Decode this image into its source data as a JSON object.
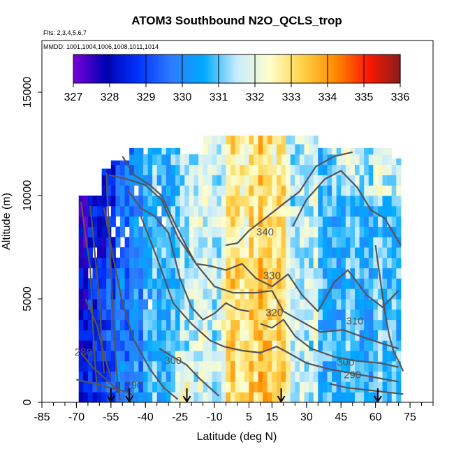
{
  "chart_data": {
    "type": "heatmap",
    "title": "ATOM3 Southbound N2O_QCLS_trop",
    "flights_label": "Flts: 2,3,4,5,6,7",
    "mmdd_label": "MMDD: 1001,1004,1006,1008,1011,1014",
    "xlabel": "Latitude (deg N)",
    "ylabel": "Altitude (m)",
    "xlim": [
      -85,
      85
    ],
    "ylim": [
      0,
      17500
    ],
    "x_ticks": [
      -85,
      -70,
      -55,
      -40,
      -25,
      -10,
      5,
      15,
      30,
      45,
      60,
      75
    ],
    "y_ticks": [
      0,
      5000,
      10000,
      15000
    ],
    "colorbar": {
      "ticks": [
        327,
        328,
        329,
        330,
        331,
        332,
        333,
        334,
        335,
        336
      ],
      "colors": [
        "#7a00d6",
        "#0000b3",
        "#0035ff",
        "#2e7bff",
        "#00aaff",
        "#c8ecff",
        "#ffffcc",
        "#ffd24a",
        "#ff8c00",
        "#ff1a00",
        "#8b1a1a"
      ]
    },
    "flight_markers_lat": [
      -55,
      -47,
      -22,
      19,
      61
    ],
    "contour_labels": [
      {
        "text": "340",
        "lat": 12,
        "alt": 8200
      },
      {
        "text": "330",
        "lat": 15,
        "alt": 6100
      },
      {
        "text": "320",
        "lat": 16,
        "alt": 4300
      },
      {
        "text": "310",
        "lat": 51,
        "alt": 3900
      },
      {
        "text": "300",
        "lat": -28,
        "alt": 2000
      },
      {
        "text": "300",
        "lat": 47,
        "alt": 1900
      },
      {
        "text": "290",
        "lat": -45,
        "alt": 800
      },
      {
        "text": "290",
        "lat": 50,
        "alt": 1300
      },
      {
        "text": "280",
        "lat": -67,
        "alt": 2400
      }
    ]
  }
}
